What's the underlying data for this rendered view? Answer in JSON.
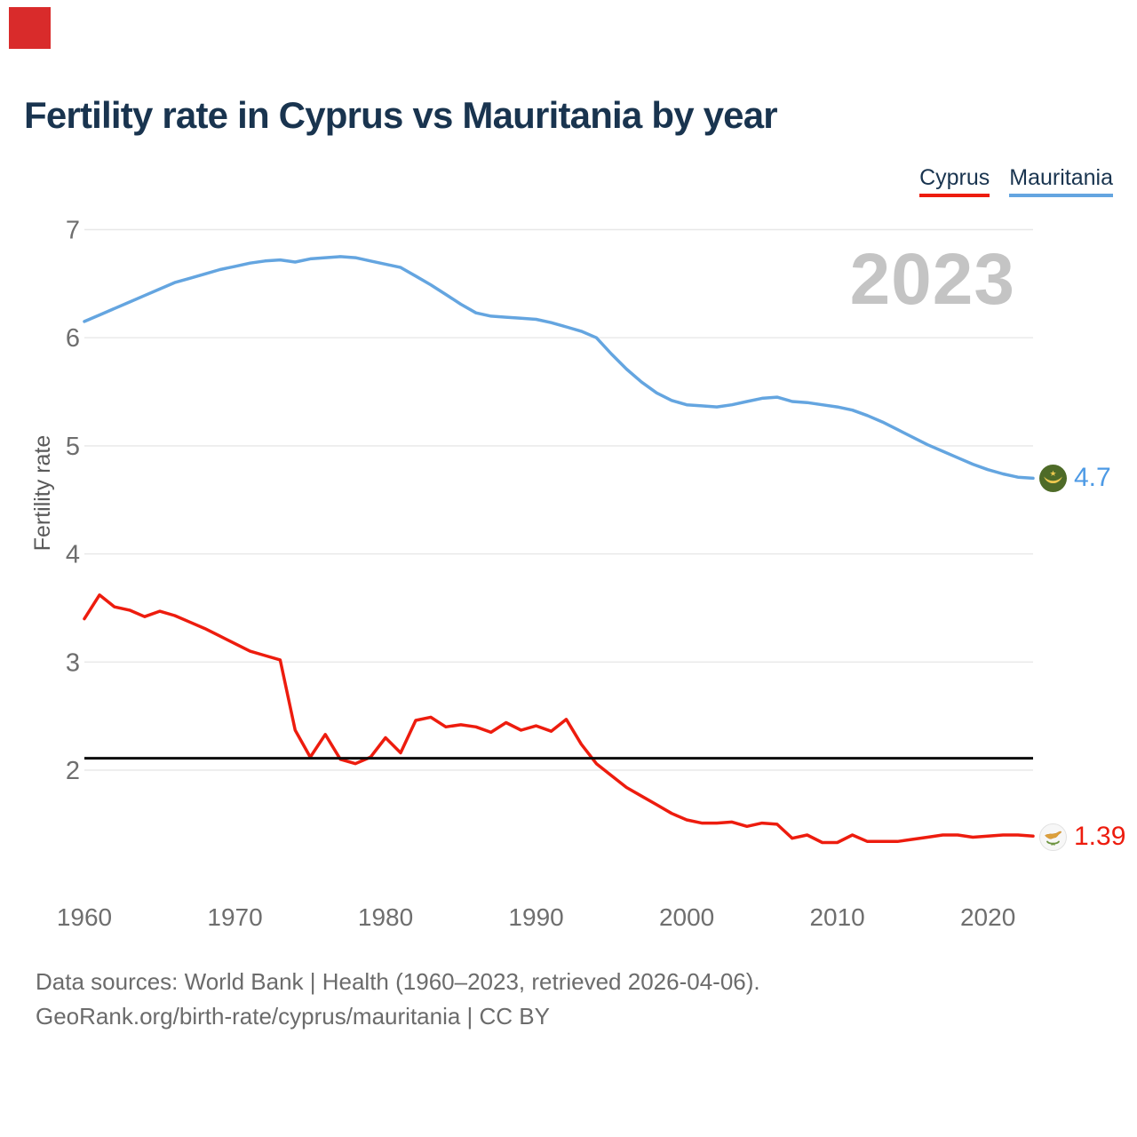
{
  "title": "Fertility rate in Cyprus vs Mauritania by year",
  "watermark": "2023",
  "legend": {
    "cyprus": {
      "label": "Cyprus",
      "color": "#ed1c0e"
    },
    "mauritania": {
      "label": "Mauritania",
      "color": "#64a5e0"
    }
  },
  "end_labels": {
    "mauritania": "4.7",
    "cyprus": "1.39"
  },
  "footer": {
    "line1": "Data sources: World Bank | Health (1960–2023, retrieved 2026-04-06).",
    "line2": "GeoRank.org/birth-rate/cyprus/mauritania | CC BY"
  },
  "colors": {
    "cyprus_red": "#ed1c0e",
    "mauritania_blue": "#64a5e0",
    "mauritania_label_blue": "#4d9ae5",
    "title_navy": "#19344f",
    "tick_gray": "#6e6e6e",
    "grid_gray": "#e8e8e8",
    "watermark_gray": "#c4c4c4",
    "replacement_line_black": "#0a0a0a",
    "corner_marker_red": "#d92b2b",
    "flag_green": "#4e6b28",
    "flag_gold": "#edc94f",
    "island_copper": "#dda03c",
    "olive_green": "#6d9440"
  },
  "chart_data": {
    "type": "line",
    "title": "Fertility rate in Cyprus vs Mauritania by year",
    "ylabel": "Fertility rate",
    "xlabel": "",
    "grid": "horizontal",
    "legend_position": "top-right",
    "xlim": [
      1960,
      2023
    ],
    "ylim": [
      1.0,
      7.2
    ],
    "y_ticks": [
      7,
      6,
      5,
      4,
      3,
      2
    ],
    "x_ticks": [
      1960,
      1970,
      1980,
      1990,
      2000,
      2010,
      2020
    ],
    "reference_line": {
      "value": 2.11,
      "color": "#0a0a0a"
    },
    "x": [
      1960,
      1961,
      1962,
      1963,
      1964,
      1965,
      1966,
      1967,
      1968,
      1969,
      1970,
      1971,
      1972,
      1973,
      1974,
      1975,
      1976,
      1977,
      1978,
      1979,
      1980,
      1981,
      1982,
      1983,
      1984,
      1985,
      1986,
      1987,
      1988,
      1989,
      1990,
      1991,
      1992,
      1993,
      1994,
      1995,
      1996,
      1997,
      1998,
      1999,
      2000,
      2001,
      2002,
      2003,
      2004,
      2005,
      2006,
      2007,
      2008,
      2009,
      2010,
      2011,
      2012,
      2013,
      2014,
      2015,
      2016,
      2017,
      2018,
      2019,
      2020,
      2021,
      2022,
      2023
    ],
    "series": [
      {
        "name": "Cyprus",
        "color": "#ed1c0e",
        "end_label": "1.39",
        "values": [
          3.4,
          3.62,
          3.51,
          3.48,
          3.42,
          3.47,
          3.43,
          3.37,
          3.31,
          3.24,
          3.17,
          3.1,
          3.06,
          3.02,
          2.37,
          2.12,
          2.33,
          2.1,
          2.06,
          2.12,
          2.3,
          2.16,
          2.46,
          2.49,
          2.4,
          2.42,
          2.4,
          2.35,
          2.44,
          2.37,
          2.41,
          2.36,
          2.47,
          2.24,
          2.06,
          1.95,
          1.84,
          1.76,
          1.68,
          1.6,
          1.54,
          1.51,
          1.51,
          1.52,
          1.48,
          1.51,
          1.5,
          1.37,
          1.4,
          1.33,
          1.33,
          1.4,
          1.34,
          1.34,
          1.34,
          1.36,
          1.38,
          1.4,
          1.4,
          1.38,
          1.39,
          1.4,
          1.4,
          1.39
        ]
      },
      {
        "name": "Mauritania",
        "color": "#64a5e0",
        "end_label": "4.7",
        "values": [
          6.15,
          6.21,
          6.27,
          6.33,
          6.39,
          6.45,
          6.51,
          6.55,
          6.59,
          6.63,
          6.66,
          6.69,
          6.71,
          6.72,
          6.7,
          6.73,
          6.74,
          6.75,
          6.74,
          6.71,
          6.68,
          6.65,
          6.57,
          6.49,
          6.4,
          6.31,
          6.23,
          6.2,
          6.19,
          6.18,
          6.17,
          6.14,
          6.1,
          6.06,
          6.0,
          5.85,
          5.71,
          5.59,
          5.49,
          5.42,
          5.38,
          5.37,
          5.36,
          5.38,
          5.41,
          5.44,
          5.45,
          5.41,
          5.4,
          5.38,
          5.36,
          5.33,
          5.28,
          5.22,
          5.15,
          5.08,
          5.01,
          4.95,
          4.89,
          4.83,
          4.78,
          4.74,
          4.71,
          4.7
        ]
      }
    ]
  }
}
